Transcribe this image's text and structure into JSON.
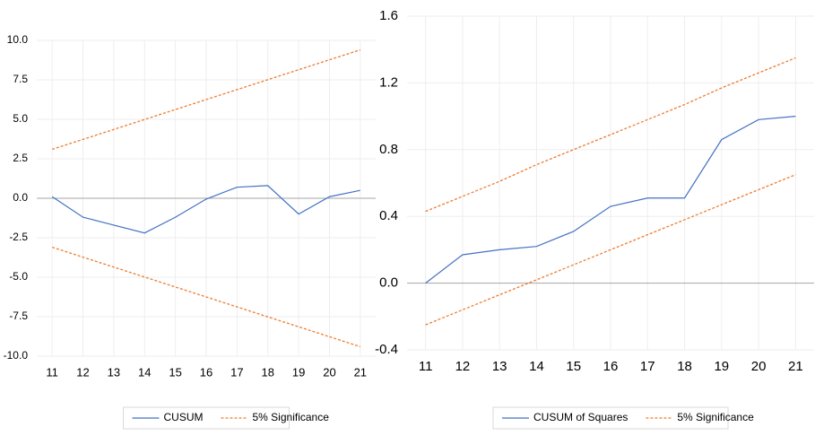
{
  "chart_data": [
    {
      "type": "line",
      "categories": [
        "11",
        "12",
        "13",
        "14",
        "15",
        "16",
        "17",
        "18",
        "19",
        "20",
        "21"
      ],
      "series": [
        {
          "name": "CUSUM",
          "color": "#4472c4",
          "values": [
            0.1,
            -1.2,
            -1.7,
            -2.2,
            -1.2,
            -0.05,
            0.7,
            0.8,
            -1.0,
            0.1,
            0.5
          ]
        },
        {
          "name": "5% Significance",
          "color": "#ed7d31",
          "dashed": true,
          "values": [
            3.1,
            3.73,
            4.36,
            4.99,
            5.62,
            6.25,
            6.88,
            7.51,
            8.14,
            8.77,
            9.4
          ],
          "lower": [
            -3.1,
            -3.73,
            -4.36,
            -4.99,
            -5.62,
            -6.25,
            -6.88,
            -7.51,
            -8.14,
            -8.77,
            -9.4
          ]
        }
      ],
      "ylim": [
        -10,
        10
      ],
      "yticks": [
        {
          "value": -10,
          "label": "-10.0"
        },
        -7.5,
        {
          "value": -5,
          "label": "-5.0"
        },
        -2.5,
        {
          "value": 0,
          "label": "0.0"
        },
        2.5,
        {
          "value": 5,
          "label": "5.0"
        },
        7.5,
        {
          "value": 10,
          "label": "10.0"
        }
      ],
      "grid": true
    },
    {
      "type": "line",
      "categories": [
        "11",
        "12",
        "13",
        "14",
        "15",
        "16",
        "17",
        "18",
        "19",
        "20",
        "21"
      ],
      "series": [
        {
          "name": "CUSUM of Squares",
          "color": "#4472c4",
          "values": [
            0.0,
            0.17,
            0.2,
            0.22,
            0.31,
            0.46,
            0.51,
            0.51,
            0.86,
            0.98,
            1.0
          ]
        },
        {
          "name": "5% Significance",
          "color": "#ed7d31",
          "dashed": true,
          "values": [
            0.43,
            0.52,
            0.61,
            0.71,
            0.8,
            0.89,
            0.98,
            1.07,
            1.17,
            1.26,
            1.35
          ],
          "lower": [
            -0.25,
            -0.16,
            -0.07,
            0.02,
            0.11,
            0.2,
            0.29,
            0.38,
            0.47,
            0.56,
            0.65
          ]
        }
      ],
      "ylim": [
        -0.4,
        1.6
      ],
      "yticks": [
        -0.4,
        {
          "value": 0,
          "label": "0.0"
        },
        0.4,
        0.8,
        1.2,
        1.6
      ],
      "grid": true
    }
  ]
}
